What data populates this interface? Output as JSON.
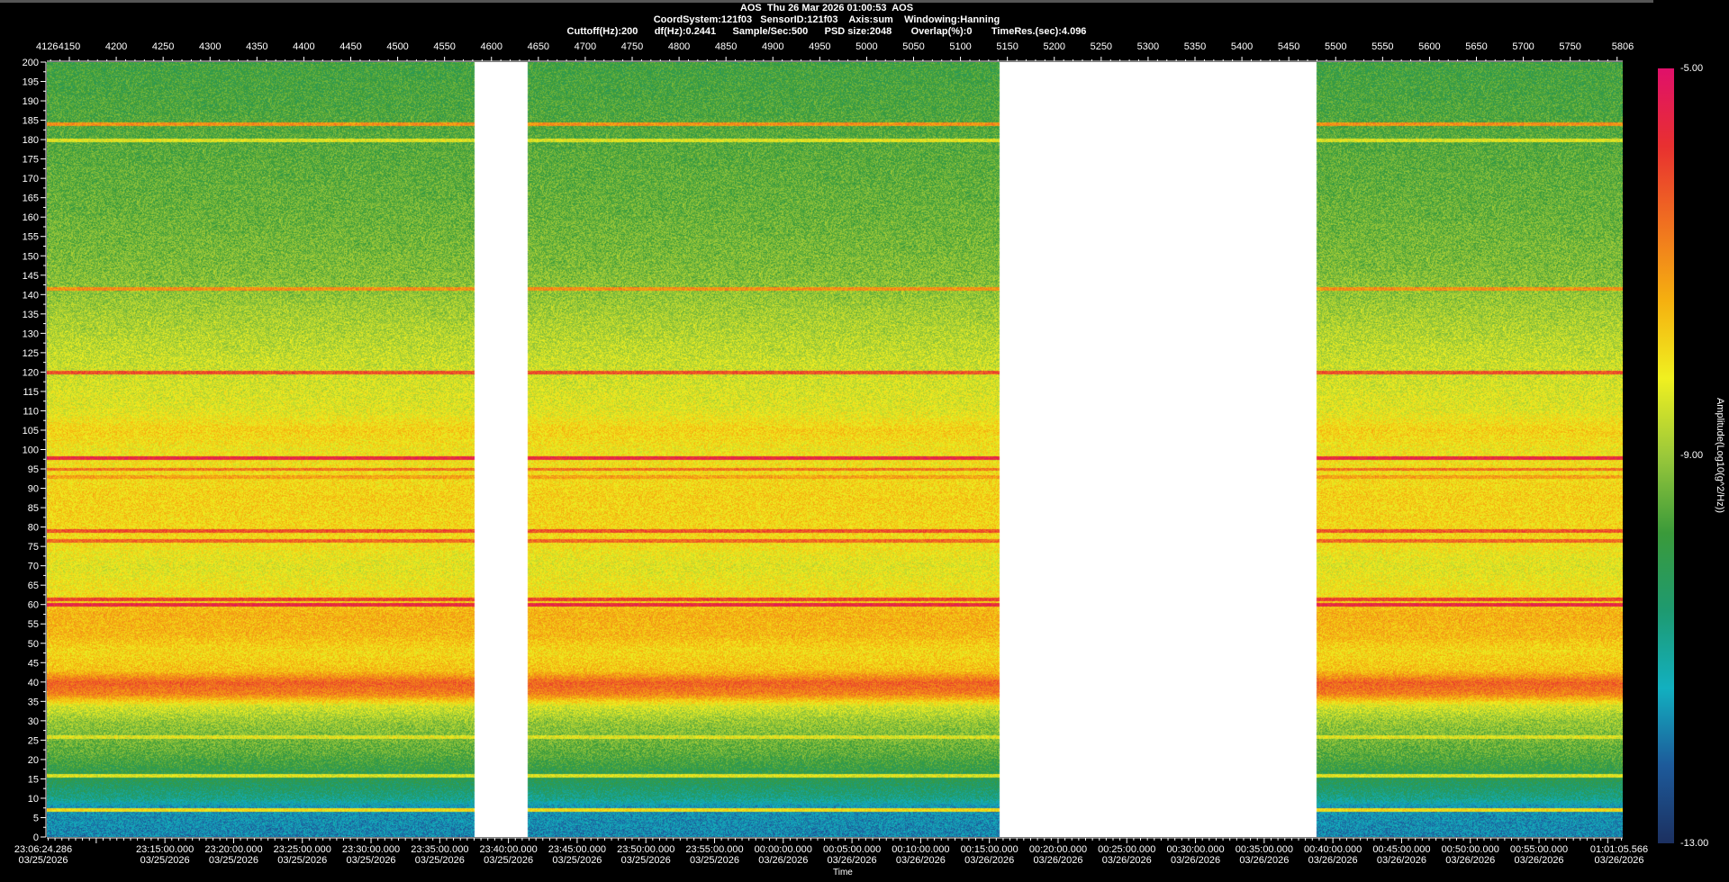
{
  "header": {
    "line1": "AOS  Thu 26 Mar 2026 01:00:53  AOS",
    "line2": "CoordSystem:121f03   SensorID:121f03    Axis:sum    Windowing:Hanning",
    "line3": "Cuttoff(Hz):200      df(Hz):0.2441      Sample/Sec:500      PSD size:2048       Overlap(%):0       TimeRes.(sec):4.096"
  },
  "chart_data": {
    "type": "heatmap",
    "title": "",
    "xlabel": "Time",
    "ylabel": "",
    "zlabel": "Amplitude(Log10(g^2/Hz))",
    "top_axis": {
      "range": [
        4126,
        5806
      ],
      "start_label": "4126",
      "ticks": [
        4150,
        4200,
        4250,
        4300,
        4350,
        4400,
        4450,
        4500,
        4550,
        4600,
        4650,
        4700,
        4750,
        4800,
        4850,
        4900,
        4950,
        5000,
        5050,
        5100,
        5150,
        5200,
        5250,
        5300,
        5350,
        5400,
        5450,
        5500,
        5550,
        5600,
        5650,
        5700,
        5750,
        5806
      ]
    },
    "time_axis": {
      "start": {
        "time": "23:06:24.286",
        "date": "03/25/2026"
      },
      "end": {
        "time": "01:01:05.566",
        "date": "03/26/2026"
      },
      "labels": [
        {
          "time": "23:15:00.000",
          "date": "03/25/2026"
        },
        {
          "time": "23:20:00.000",
          "date": "03/25/2026"
        },
        {
          "time": "23:25:00.000",
          "date": "03/25/2026"
        },
        {
          "time": "23:30:00.000",
          "date": "03/25/2026"
        },
        {
          "time": "23:35:00.000",
          "date": "03/25/2026"
        },
        {
          "time": "23:40:00.000",
          "date": "03/25/2026"
        },
        {
          "time": "23:45:00.000",
          "date": "03/25/2026"
        },
        {
          "time": "23:50:00.000",
          "date": "03/25/2026"
        },
        {
          "time": "23:55:00.000",
          "date": "03/25/2026"
        },
        {
          "time": "00:00:00.000",
          "date": "03/26/2026"
        },
        {
          "time": "00:05:00.000",
          "date": "03/26/2026"
        },
        {
          "time": "00:10:00.000",
          "date": "03/26/2026"
        },
        {
          "time": "00:15:00.000",
          "date": "03/26/2026"
        },
        {
          "time": "00:20:00.000",
          "date": "03/26/2026"
        },
        {
          "time": "00:25:00.000",
          "date": "03/26/2026"
        },
        {
          "time": "00:30:00.000",
          "date": "03/26/2026"
        },
        {
          "time": "00:35:00.000",
          "date": "03/26/2026"
        },
        {
          "time": "00:40:00.000",
          "date": "03/26/2026"
        },
        {
          "time": "00:45:00.000",
          "date": "03/26/2026"
        },
        {
          "time": "00:50:00.000",
          "date": "03/26/2026"
        },
        {
          "time": "00:55:00.000",
          "date": "03/26/2026"
        }
      ]
    },
    "y_axis": {
      "range": [
        0,
        200
      ],
      "step": 5,
      "unit": "Hz"
    },
    "z_range": [
      -13,
      -5
    ],
    "z_labels": [
      "-5.00",
      "-9.00",
      "-13.00"
    ],
    "colormap": [
      "#1c3060",
      "#1d5a9a",
      "#12b0c0",
      "#1e9a70",
      "#3a9a3a",
      "#9ac83a",
      "#f0f020",
      "#f5b010",
      "#f07020",
      "#e83030",
      "#e0106a"
    ],
    "gaps_index": [
      [
        4582,
        4638
      ],
      [
        5141,
        5479
      ]
    ],
    "mean_profile": [
      [
        0,
        -11.8
      ],
      [
        8,
        -11.6
      ],
      [
        10,
        -10.8
      ],
      [
        15,
        -10.2
      ],
      [
        18,
        -9.9
      ],
      [
        22,
        -9.5
      ],
      [
        30,
        -9.0
      ],
      [
        34,
        -8.4
      ],
      [
        37,
        -6.8
      ],
      [
        40,
        -6.4
      ],
      [
        43,
        -7.6
      ],
      [
        48,
        -7.9
      ],
      [
        52,
        -7.5
      ],
      [
        58,
        -7.4
      ],
      [
        62,
        -8.0
      ],
      [
        70,
        -8.3
      ],
      [
        78,
        -7.9
      ],
      [
        88,
        -7.8
      ],
      [
        95,
        -8.0
      ],
      [
        100,
        -8.1
      ],
      [
        105,
        -7.8
      ],
      [
        110,
        -8.3
      ],
      [
        120,
        -8.5
      ],
      [
        135,
        -8.9
      ],
      [
        145,
        -9.2
      ],
      [
        160,
        -9.4
      ],
      [
        180,
        -9.6
      ],
      [
        200,
        -9.8
      ]
    ],
    "tonal_lines": [
      [
        184,
        -7.0
      ],
      [
        180,
        -8.3
      ],
      [
        141.5,
        -7.0
      ],
      [
        120,
        -6.2
      ],
      [
        98,
        -5.6
      ],
      [
        95,
        -6.6
      ],
      [
        93,
        -7.2
      ],
      [
        79,
        -6.2
      ],
      [
        76.5,
        -6.5
      ],
      [
        61.5,
        -6.0
      ],
      [
        60,
        -5.6
      ],
      [
        26,
        -8.3
      ],
      [
        16,
        -8.3
      ],
      [
        7,
        -8.0
      ]
    ]
  }
}
